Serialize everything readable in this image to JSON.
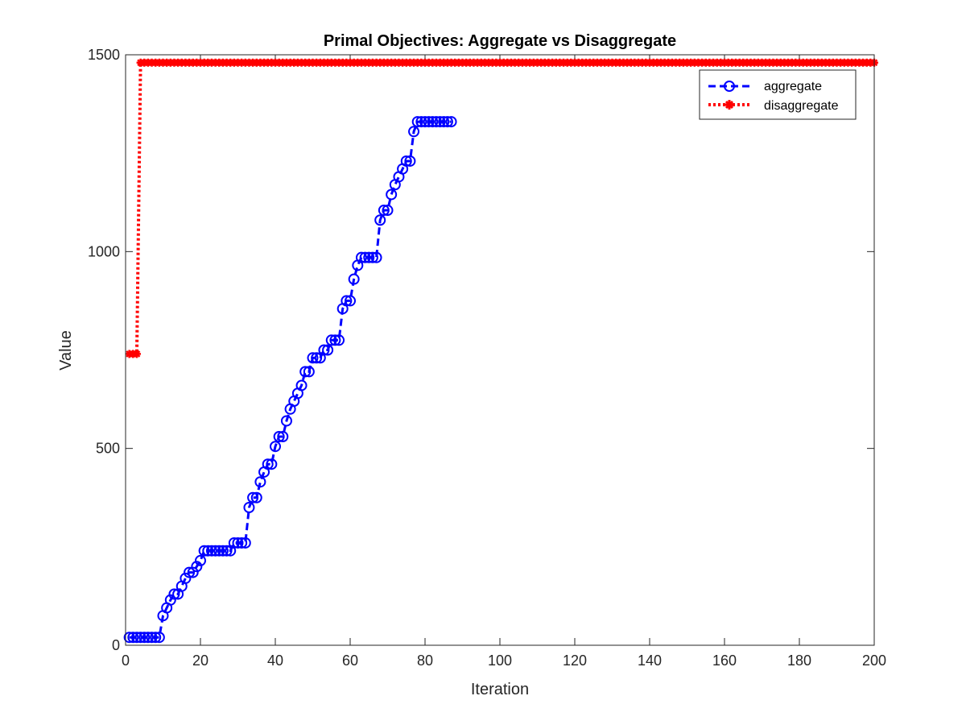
{
  "chart_data": {
    "type": "line",
    "title": "Primal Objectives: Aggregate vs Disaggregate",
    "xlabel": "Iteration",
    "ylabel": "Value",
    "xlim": [
      0,
      200
    ],
    "ylim": [
      0,
      1500
    ],
    "xticks": [
      0,
      20,
      40,
      60,
      80,
      100,
      120,
      140,
      160,
      180,
      200
    ],
    "yticks": [
      0,
      500,
      1000,
      1500
    ],
    "grid": false,
    "legend_position": "top-right",
    "series": [
      {
        "name": "aggregate",
        "color": "#0000ff",
        "line_style": "dashed",
        "marker": "circle",
        "x": [
          1,
          2,
          3,
          4,
          5,
          6,
          7,
          8,
          9,
          10,
          11,
          12,
          13,
          14,
          15,
          16,
          17,
          18,
          19,
          20,
          21,
          22,
          23,
          24,
          25,
          26,
          27,
          28,
          29,
          30,
          31,
          32,
          33,
          34,
          35,
          36,
          37,
          38,
          39,
          40,
          41,
          42,
          43,
          44,
          45,
          46,
          47,
          48,
          49,
          50,
          51,
          52,
          53,
          54,
          55,
          56,
          57,
          58,
          59,
          60,
          61,
          62,
          63,
          64,
          65,
          66,
          67,
          68,
          69,
          70,
          71,
          72,
          73,
          74,
          75,
          76,
          77,
          78,
          79,
          80,
          81,
          82,
          83,
          84,
          85,
          86,
          87
        ],
        "values": [
          20,
          20,
          20,
          20,
          20,
          20,
          20,
          20,
          20,
          75,
          95,
          115,
          130,
          130,
          150,
          170,
          185,
          185,
          200,
          215,
          240,
          240,
          240,
          240,
          240,
          240,
          240,
          240,
          260,
          260,
          260,
          260,
          350,
          375,
          375,
          415,
          440,
          460,
          460,
          505,
          530,
          530,
          570,
          600,
          620,
          640,
          660,
          695,
          695,
          730,
          730,
          730,
          750,
          750,
          775,
          775,
          775,
          855,
          875,
          875,
          930,
          965,
          985,
          985,
          985,
          985,
          985,
          1080,
          1105,
          1105,
          1145,
          1170,
          1190,
          1210,
          1230,
          1230,
          1305,
          1330,
          1330,
          1330,
          1330,
          1330,
          1330,
          1330,
          1330,
          1330,
          1330
        ]
      },
      {
        "name": "disaggregate",
        "color": "#ff0000",
        "line_style": "dotted",
        "marker": "asterisk",
        "x_start": 1,
        "x_end": 200,
        "values_by_segment": [
          {
            "from": 1,
            "to": 3,
            "value": 740
          },
          {
            "from": 4,
            "to": 200,
            "value": 1480
          }
        ]
      }
    ]
  }
}
